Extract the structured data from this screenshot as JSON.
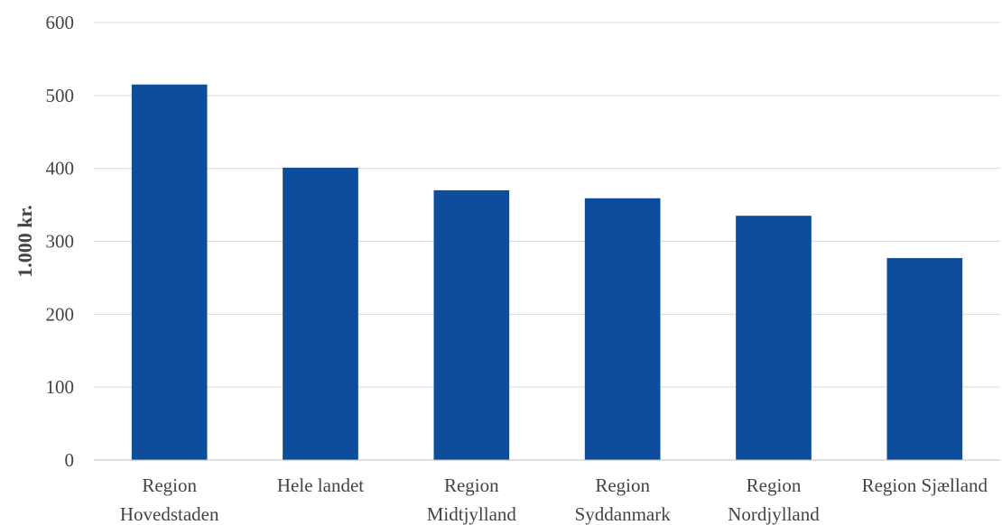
{
  "chart_data": {
    "type": "bar",
    "categories": [
      [
        "Region",
        "Hovedstaden"
      ],
      [
        "Hele landet"
      ],
      [
        "Region",
        "Midtjylland"
      ],
      [
        "Region",
        "Syddanmark"
      ],
      [
        "Region",
        "Nordjylland"
      ],
      [
        "Region Sjælland"
      ]
    ],
    "values": [
      515,
      401,
      370,
      359,
      335,
      277
    ],
    "ylabel": "1.000 kr.",
    "xlabel": "",
    "title": "",
    "ylim": [
      0,
      600
    ],
    "yticks": [
      0,
      100,
      200,
      300,
      400,
      500,
      600
    ],
    "grid": true,
    "legend": "none",
    "bar_color": "#0e4d9b"
  }
}
